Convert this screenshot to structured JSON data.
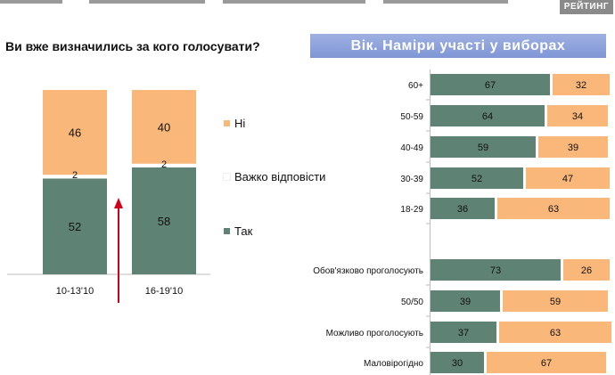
{
  "header": {
    "badge": "РЕЙТИНГ"
  },
  "left_title": "Ви вже визначились за кого голосувати?",
  "right_title": "Вік. Наміри участі у виборах",
  "colors": {
    "yes": "#5e8273",
    "no": "#f9b87a",
    "hard": "#ffffff",
    "arrow": "#d0021b"
  },
  "legend": [
    {
      "label": "Ні",
      "color": "#f9b87a"
    },
    {
      "label": "Важко відповісти",
      "color": "#ffffff"
    },
    {
      "label": "Так",
      "color": "#5e8273"
    }
  ],
  "chart_data": [
    {
      "type": "bar",
      "stacked": true,
      "title": "Ви вже визначились за кого голосувати?",
      "categories": [
        "10-13'10",
        "16-19'10"
      ],
      "series": [
        {
          "name": "Так",
          "values": [
            52,
            58
          ]
        },
        {
          "name": "Важко відповісти",
          "values": [
            2,
            2
          ]
        },
        {
          "name": "Ні",
          "values": [
            46,
            40
          ]
        }
      ],
      "ylim": [
        0,
        100
      ],
      "legend_position": "right"
    },
    {
      "type": "bar",
      "orientation": "horizontal",
      "stacked": true,
      "title": "Вік. Наміри участі у виборах",
      "categories": [
        "60+",
        "50-59",
        "40-49",
        "30-39",
        "18-29",
        "Обов'язково проголосують",
        "50/50",
        "Можливо проголосують",
        "Маловірогідно"
      ],
      "series": [
        {
          "values": [
            67,
            64,
            59,
            52,
            36,
            73,
            39,
            37,
            30
          ]
        },
        {
          "values": [
            32,
            34,
            39,
            47,
            63,
            26,
            59,
            63,
            67
          ]
        }
      ],
      "xlim": [
        0,
        100
      ]
    }
  ]
}
